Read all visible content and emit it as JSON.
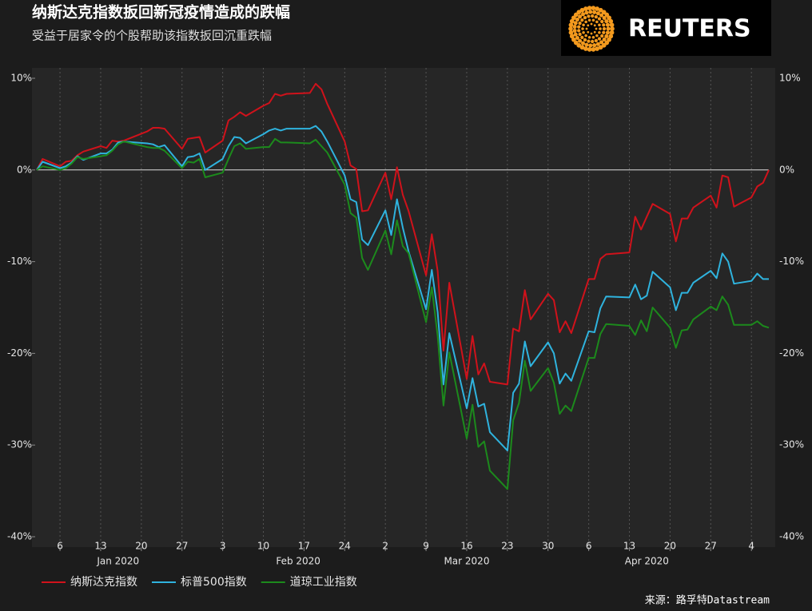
{
  "chart_data": {
    "type": "line",
    "title": "纳斯达克指数扳回新冠疫情造成的跌幅",
    "subtitle": "受益于居家令的个股帮助该指数扳回沉重跌幅",
    "logo": "REUTERS",
    "source": "来源：路孚特Datastream",
    "x": [
      "2020-01-02",
      "2020-01-03",
      "2020-01-06",
      "2020-01-07",
      "2020-01-08",
      "2020-01-09",
      "2020-01-10",
      "2020-01-13",
      "2020-01-14",
      "2020-01-15",
      "2020-01-16",
      "2020-01-17",
      "2020-01-21",
      "2020-01-22",
      "2020-01-23",
      "2020-01-24",
      "2020-01-27",
      "2020-01-28",
      "2020-01-29",
      "2020-01-30",
      "2020-01-31",
      "2020-02-03",
      "2020-02-04",
      "2020-02-05",
      "2020-02-06",
      "2020-02-07",
      "2020-02-10",
      "2020-02-11",
      "2020-02-12",
      "2020-02-13",
      "2020-02-14",
      "2020-02-18",
      "2020-02-19",
      "2020-02-20",
      "2020-02-21",
      "2020-02-24",
      "2020-02-25",
      "2020-02-26",
      "2020-02-27",
      "2020-02-28",
      "2020-03-02",
      "2020-03-03",
      "2020-03-04",
      "2020-03-05",
      "2020-03-06",
      "2020-03-09",
      "2020-03-10",
      "2020-03-11",
      "2020-03-12",
      "2020-03-13",
      "2020-03-16",
      "2020-03-17",
      "2020-03-18",
      "2020-03-19",
      "2020-03-20",
      "2020-03-23",
      "2020-03-24",
      "2020-03-25",
      "2020-03-26",
      "2020-03-27",
      "2020-03-30",
      "2020-03-31",
      "2020-04-01",
      "2020-04-02",
      "2020-04-03",
      "2020-04-06",
      "2020-04-07",
      "2020-04-08",
      "2020-04-09",
      "2020-04-13",
      "2020-04-14",
      "2020-04-15",
      "2020-04-16",
      "2020-04-17",
      "2020-04-20",
      "2020-04-21",
      "2020-04-22",
      "2020-04-23",
      "2020-04-24",
      "2020-04-27",
      "2020-04-28",
      "2020-04-29",
      "2020-04-30",
      "2020-05-01",
      "2020-05-04",
      "2020-05-05",
      "2020-05-06",
      "2020-05-07"
    ],
    "series": [
      {
        "name": "纳斯达克指数",
        "color": "#d0121b",
        "values": [
          0,
          1.2,
          0.4,
          0.9,
          1.0,
          1.6,
          2.0,
          2.6,
          2.4,
          3.2,
          3.1,
          3.2,
          4.2,
          4.6,
          4.6,
          4.5,
          2.3,
          3.4,
          3.5,
          3.6,
          1.9,
          3.2,
          5.4,
          5.8,
          6.3,
          5.9,
          7.0,
          7.3,
          8.3,
          8.1,
          8.3,
          8.4,
          9.4,
          8.8,
          7.2,
          3.1,
          0.5,
          0.1,
          -4.5,
          -4.4,
          -0.3,
          -3.2,
          0.3,
          -2.7,
          -4.5,
          -11.5,
          -7.0,
          -11.0,
          -19.7,
          -12.3,
          -22.8,
          -18.1,
          -22.3,
          -21.1,
          -23.1,
          -23.4,
          -17.3,
          -17.6,
          -13.1,
          -16.3,
          -13.5,
          -14.2,
          -17.7,
          -16.5,
          -17.8,
          -11.9,
          -11.9,
          -9.7,
          -9.2,
          -9.0,
          -5.1,
          -6.5,
          -5.1,
          -3.7,
          -4.8,
          -7.8,
          -5.3,
          -5.3,
          -4.1,
          -2.8,
          -4.1,
          -0.6,
          -0.8,
          -4.0,
          -3.0,
          -1.8,
          -1.4,
          0.0
        ]
      },
      {
        "name": "标普500指数",
        "color": "#2fb3de",
        "values": [
          0,
          0.9,
          0.2,
          0.4,
          0.8,
          1.5,
          1.1,
          1.8,
          1.8,
          2.2,
          3.0,
          3.1,
          2.9,
          2.8,
          2.5,
          2.7,
          0.4,
          1.4,
          1.5,
          1.8,
          0.0,
          1.2,
          2.6,
          3.6,
          3.5,
          2.9,
          3.9,
          4.3,
          4.5,
          4.3,
          4.5,
          4.5,
          4.8,
          4.2,
          3.1,
          -0.6,
          -3.2,
          -3.5,
          -7.6,
          -8.2,
          -4.4,
          -7.1,
          -3.2,
          -6.3,
          -8.9,
          -15.2,
          -10.9,
          -15.5,
          -23.4,
          -17.8,
          -26.0,
          -22.7,
          -25.8,
          -25.5,
          -28.6,
          -30.6,
          -24.3,
          -23.3,
          -18.7,
          -21.4,
          -18.8,
          -20.0,
          -23.3,
          -22.2,
          -23.0,
          -17.6,
          -17.7,
          -15.1,
          -13.8,
          -13.9,
          -12.5,
          -14.1,
          -13.7,
          -11.1,
          -12.8,
          -15.3,
          -13.4,
          -13.4,
          -12.3,
          -11.0,
          -11.8,
          -9.1,
          -10.0,
          -12.4,
          -12.1,
          -11.3,
          -11.9,
          -11.9
        ]
      },
      {
        "name": "道琼工业指数",
        "color": "#1c8a1c",
        "values": [
          0,
          0.4,
          0.0,
          0.2,
          0.7,
          1.4,
          1.2,
          1.5,
          1.6,
          2.1,
          2.8,
          3.1,
          2.5,
          2.4,
          2.4,
          2.1,
          0.2,
          0.9,
          0.8,
          1.2,
          -0.8,
          -0.3,
          1.2,
          2.6,
          2.9,
          2.3,
          2.5,
          2.5,
          3.4,
          3.0,
          3.0,
          2.9,
          3.3,
          2.6,
          1.9,
          -1.6,
          -4.7,
          -5.2,
          -9.6,
          -10.9,
          -6.6,
          -9.2,
          -5.5,
          -8.3,
          -9.1,
          -16.6,
          -12.8,
          -18.1,
          -25.7,
          -19.9,
          -29.3,
          -25.6,
          -30.2,
          -29.6,
          -32.8,
          -34.8,
          -27.3,
          -25.4,
          -20.8,
          -24.1,
          -21.6,
          -23.2,
          -26.6,
          -25.7,
          -26.3,
          -20.5,
          -20.5,
          -17.9,
          -16.8,
          -17.0,
          -18.0,
          -16.4,
          -17.6,
          -15.0,
          -17.2,
          -19.4,
          -17.5,
          -17.4,
          -16.3,
          -14.9,
          -15.3,
          -13.8,
          -14.7,
          -16.9,
          -16.9,
          -16.5,
          -17.0,
          -17.2
        ]
      }
    ],
    "xlim": [
      "2020-01-02",
      "2020-05-07"
    ],
    "xticks": [
      {
        "value": "2020-01-06",
        "label": "6"
      },
      {
        "value": "2020-01-13",
        "label": "13"
      },
      {
        "value": "2020-01-20",
        "label": "20"
      },
      {
        "value": "2020-01-27",
        "label": "27"
      },
      {
        "value": "2020-02-03",
        "label": "3"
      },
      {
        "value": "2020-02-10",
        "label": "10"
      },
      {
        "value": "2020-02-17",
        "label": "17"
      },
      {
        "value": "2020-02-24",
        "label": "24"
      },
      {
        "value": "2020-03-02",
        "label": "2"
      },
      {
        "value": "2020-03-09",
        "label": "9"
      },
      {
        "value": "2020-03-16",
        "label": "16"
      },
      {
        "value": "2020-03-23",
        "label": "23"
      },
      {
        "value": "2020-03-30",
        "label": "30"
      },
      {
        "value": "2020-04-06",
        "label": "6"
      },
      {
        "value": "2020-04-13",
        "label": "13"
      },
      {
        "value": "2020-04-20",
        "label": "20"
      },
      {
        "value": "2020-04-27",
        "label": "27"
      },
      {
        "value": "2020-05-04",
        "label": "4"
      }
    ],
    "month_labels": [
      {
        "value": "2020-01",
        "label": "Jan 2020"
      },
      {
        "value": "2020-02",
        "label": "Feb 2020"
      },
      {
        "value": "2020-03",
        "label": "Mar 2020"
      },
      {
        "value": "2020-04",
        "label": "Apr 2020"
      }
    ],
    "ylim": [
      -40,
      10
    ],
    "yticks": [
      {
        "value": 10,
        "label": "10%"
      },
      {
        "value": 0,
        "label": "0%"
      },
      {
        "value": -10,
        "label": "-10%"
      },
      {
        "value": -20,
        "label": "-20%"
      },
      {
        "value": -30,
        "label": "-30%"
      },
      {
        "value": -40,
        "label": "-40%"
      }
    ],
    "grid": true
  }
}
